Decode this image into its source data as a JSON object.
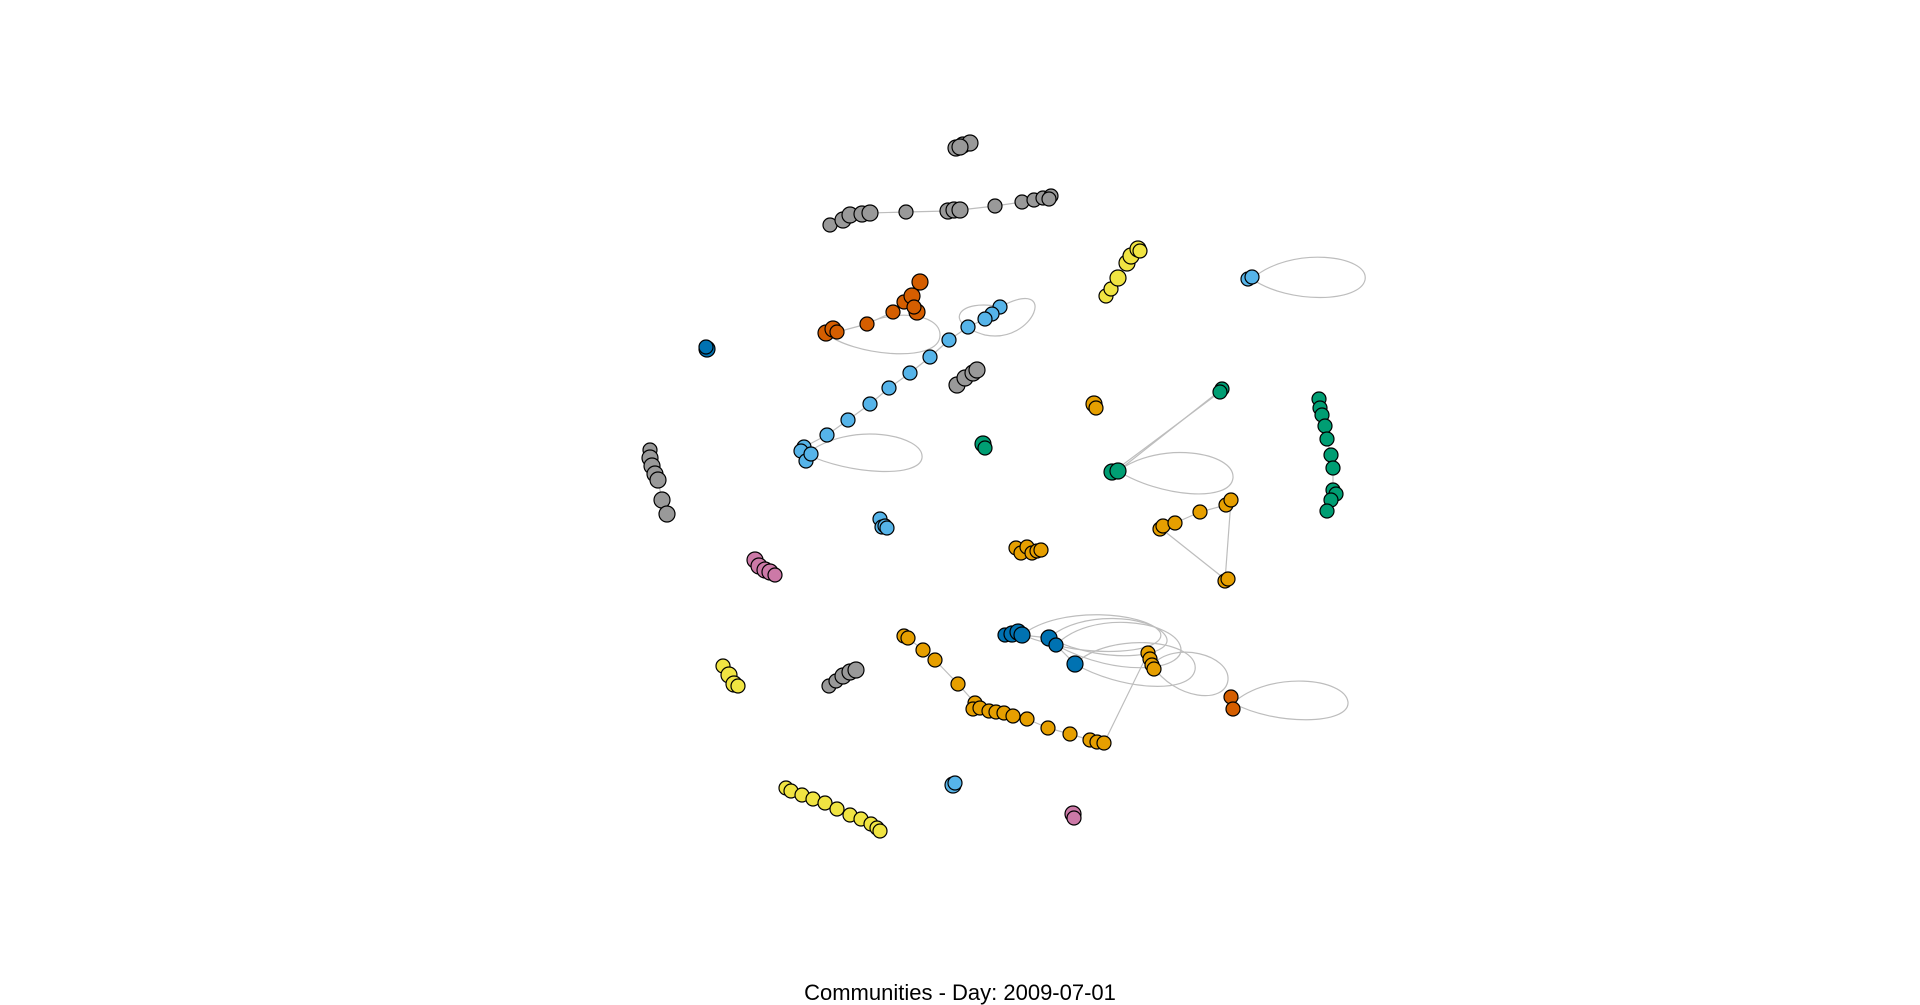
{
  "caption": "Communities - Day: 2009-07-01",
  "colors": {
    "background": "#ffffff",
    "edge": "#bdbdbd",
    "node_outline": "#000000",
    "caption_text": "#000000"
  },
  "community_palette": {
    "gray": "#999999",
    "orange": "#e69f00",
    "skyblue": "#56b4e9",
    "green": "#009e73",
    "yellow": "#f0e442",
    "blue": "#0072b2",
    "vermillion": "#d55e00",
    "pink": "#cc79a7"
  },
  "graph": {
    "layout": "force-directed, disconnected communities",
    "communities": [
      {
        "id": "gray-top",
        "color": "gray"
      },
      {
        "id": "gray-chain",
        "color": "gray"
      },
      {
        "id": "gray-mid",
        "color": "gray"
      },
      {
        "id": "gray-left",
        "color": "gray"
      },
      {
        "id": "gray-bottom",
        "color": "gray"
      },
      {
        "id": "yellow-top",
        "color": "yellow"
      },
      {
        "id": "yellow-left",
        "color": "yellow"
      },
      {
        "id": "yellow-bottom",
        "color": "yellow"
      },
      {
        "id": "skyblue-diagonal",
        "color": "skyblue"
      },
      {
        "id": "skyblue-right",
        "color": "skyblue"
      },
      {
        "id": "skyblue-mid",
        "color": "skyblue"
      },
      {
        "id": "skyblue-bottom",
        "color": "skyblue"
      },
      {
        "id": "vermillion-top",
        "color": "vermillion"
      },
      {
        "id": "vermillion-right",
        "color": "vermillion"
      },
      {
        "id": "blue-left",
        "color": "blue"
      },
      {
        "id": "blue-bottom",
        "color": "blue"
      },
      {
        "id": "green-mid",
        "color": "green"
      },
      {
        "id": "green-right",
        "color": "green"
      },
      {
        "id": "green-hub",
        "color": "green"
      },
      {
        "id": "orange-mid",
        "color": "orange"
      },
      {
        "id": "orange-right",
        "color": "orange"
      },
      {
        "id": "orange-center",
        "color": "orange"
      },
      {
        "id": "orange-bottom",
        "color": "orange"
      },
      {
        "id": "pink-left",
        "color": "pink"
      },
      {
        "id": "pink-bottom",
        "color": "pink"
      }
    ]
  }
}
